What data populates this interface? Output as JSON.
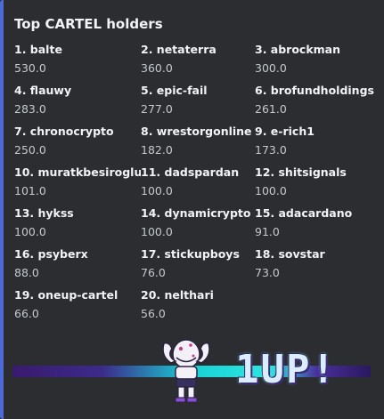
{
  "embed": {
    "title": "Top CARTEL holders",
    "accent_color": "#4e6ad6",
    "holders": [
      {
        "name": "1. balte",
        "value": "530.0"
      },
      {
        "name": "2. netaterra",
        "value": "360.0"
      },
      {
        "name": "3. abrockman",
        "value": "300.0"
      },
      {
        "name": "4. flauwy",
        "value": "283.0"
      },
      {
        "name": "5. epic-fail",
        "value": "277.0"
      },
      {
        "name": "6. brofundholdings",
        "value": "261.0"
      },
      {
        "name": "7. chronocrypto",
        "value": "250.0"
      },
      {
        "name": "8. wrestorgonline",
        "value": "182.0"
      },
      {
        "name": "9. e-rich1",
        "value": "173.0"
      },
      {
        "name": "10. muratkbesiroglu",
        "value": "101.0"
      },
      {
        "name": "11. dadspardan",
        "value": "100.0"
      },
      {
        "name": "12. shitsignals",
        "value": "100.0"
      },
      {
        "name": "13. hykss",
        "value": "100.0"
      },
      {
        "name": "14. dynamicrypto",
        "value": "100.0"
      },
      {
        "name": "15. adacardano",
        "value": "91.0"
      },
      {
        "name": "16. psyberx",
        "value": "88.0"
      },
      {
        "name": "17. stickupboys",
        "value": "76.0"
      },
      {
        "name": "18. sovstar",
        "value": "73.0"
      },
      {
        "name": "19. oneup-cartel",
        "value": "66.0"
      },
      {
        "name": "20. nelthari",
        "value": "56.0"
      }
    ],
    "banner": {
      "logo_text": "1UP!",
      "mascot": "muscle-character-icon"
    }
  }
}
